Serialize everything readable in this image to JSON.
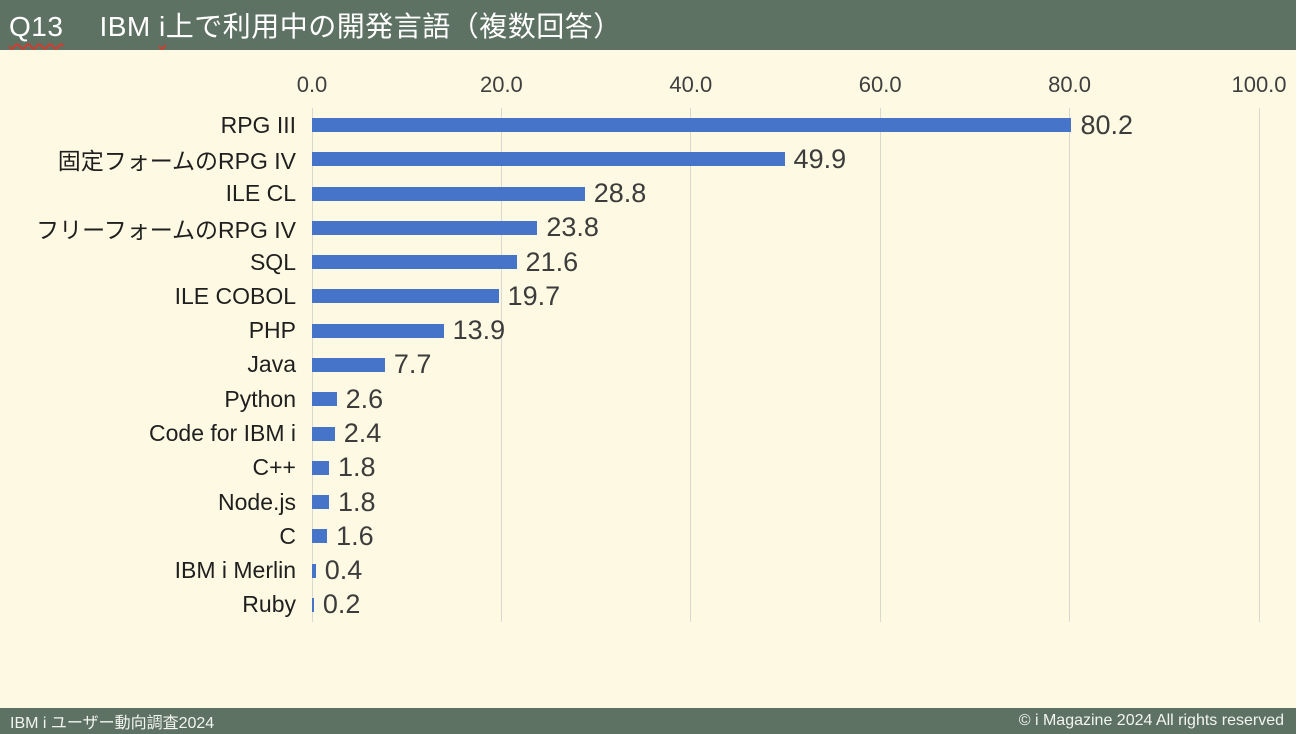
{
  "header": {
    "question_number": "Q13",
    "title_prefix": "IBM ",
    "title_i": "i",
    "title_suffix": "上で利用中の開発言語（複数回答）"
  },
  "chart_data": {
    "type": "bar",
    "orientation": "horizontal",
    "title": "Q13　IBM i上で利用中の開発言語（複数回答）",
    "categories": [
      "RPG III",
      "固定フォームのRPG IV",
      "ILE CL",
      "フリーフォームのRPG IV",
      "SQL",
      "ILE COBOL",
      "PHP",
      "Java",
      "Python",
      "Code for IBM i",
      "C++",
      "Node.js",
      "C",
      "IBM i Merlin",
      "Ruby"
    ],
    "values": [
      80.2,
      49.9,
      28.8,
      23.8,
      21.6,
      19.7,
      13.9,
      7.7,
      2.6,
      2.4,
      1.8,
      1.8,
      1.6,
      0.4,
      0.2
    ],
    "data_labels": [
      80.2,
      49.9,
      28.8,
      23.8,
      21.6,
      19.7,
      13.9,
      7.7,
      2.6,
      2.4,
      1.8,
      1.8,
      1.6,
      0.4,
      0.2
    ],
    "xlim": [
      0,
      100
    ],
    "x_ticks": [
      "0.0",
      "20.0",
      "40.0",
      "60.0",
      "80.0",
      "100.0"
    ],
    "axis_position": "top",
    "grid": true,
    "legend": false
  },
  "footer": {
    "left": "IBM i ユーザー動向調査2024",
    "right": "© i Magazine 2024 All rights reserved"
  },
  "colors": {
    "band": "#5E7264",
    "chart_background": "#FDF9E2",
    "bar": "#4674C9",
    "grid_line": "#D8D8D0",
    "tick_text": "#3F3F3F",
    "value_text": "#3C3C3C",
    "category_text": "#1F1F1F",
    "title_text": "#FFFFFF",
    "spellcheck_underline": "#D03B2F"
  }
}
